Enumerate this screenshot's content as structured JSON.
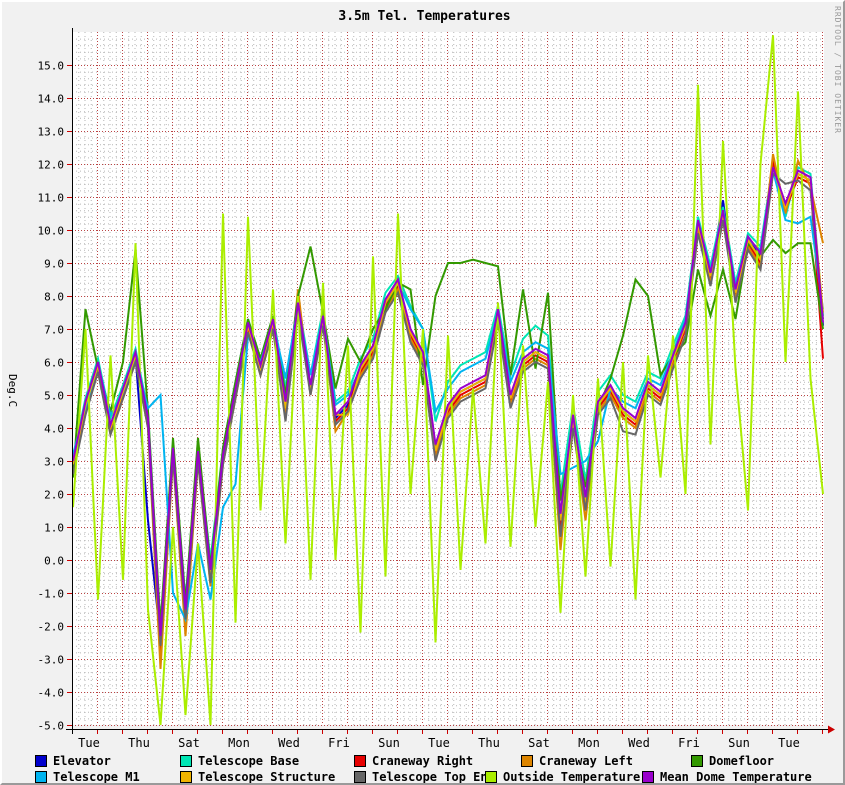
{
  "header": {
    "title": "3.5m Tel. Temperatures"
  },
  "watermark": "RRDTOOL / TOBI OETIKER",
  "y_axis": {
    "label": "Deg.C",
    "min": -5.0,
    "max": 16.0,
    "major_step": 1.0,
    "minor_step": 0.2,
    "tick_format_example": "15.0"
  },
  "x_axis": {
    "labels": [
      "Tue",
      "Thu",
      "Sat",
      "Mon",
      "Wed",
      "Fri",
      "Sun",
      "Tue",
      "Thu",
      "Sat",
      "Mon",
      "Wed",
      "Fri",
      "Sun",
      "Tue"
    ],
    "label_every_days": 2,
    "major_grid_days": 1,
    "minor_grid_days": 0.25,
    "span_days": 30
  },
  "chart_data": {
    "type": "line",
    "title": "3.5m Tel. Temperatures",
    "ylabel": "Deg.C",
    "ylim": [
      -5.0,
      16.0
    ],
    "grid": "on",
    "legend_position": "bottom",
    "x_start_day": 0,
    "step_days": 0.5,
    "x_tick_labels": [
      "Tue",
      "Thu",
      "Sat",
      "Mon",
      "Wed",
      "Fri",
      "Sun",
      "Tue",
      "Thu",
      "Sat",
      "Mon",
      "Wed",
      "Fri",
      "Sun",
      "Tue"
    ],
    "series": [
      {
        "name": "Elevator",
        "color": "#0000cc",
        "values": [
          2.9,
          4.7,
          6.0,
          4.0,
          5.1,
          6.2,
          1.2,
          -2.4,
          3.3,
          -1.6,
          3.2,
          -0.4,
          3.1,
          5.1,
          7.1,
          5.8,
          7.2,
          4.7,
          7.6,
          5.2,
          7.2,
          4.3,
          4.7,
          5.8,
          6.4,
          7.8,
          8.4,
          6.9,
          6.2,
          3.4,
          4.6,
          5.1,
          5.3,
          5.5,
          7.5,
          4.9,
          6.0,
          6.3,
          6.1,
          1.3,
          4.3,
          1.8,
          4.7,
          5.2,
          4.5,
          4.2,
          5.3,
          5.0,
          6.1,
          7.1,
          10.2,
          8.6,
          10.9,
          8.1,
          9.7,
          9.2,
          11.8,
          10.7,
          11.7,
          11.5,
          7.1
        ]
      },
      {
        "name": "Telescope Base",
        "color": "#00e6b4",
        "values": [
          3.1,
          4.9,
          6.1,
          4.3,
          5.3,
          6.4,
          4.5,
          -2.0,
          3.5,
          -1.2,
          3.4,
          0.0,
          3.4,
          5.4,
          7.3,
          6.1,
          7.4,
          5.2,
          7.9,
          5.6,
          7.6,
          4.8,
          5.1,
          6.1,
          6.7,
          8.1,
          8.6,
          7.7,
          7.0,
          4.2,
          5.4,
          5.9,
          6.1,
          6.3,
          7.7,
          5.6,
          6.7,
          7.1,
          6.8,
          2.0,
          4.7,
          2.4,
          5.1,
          5.6,
          5.0,
          4.8,
          5.7,
          5.5,
          6.5,
          7.4,
          10.4,
          8.9,
          10.7,
          8.4,
          9.9,
          9.5,
          12.0,
          10.4,
          11.9,
          11.7,
          7.4
        ]
      },
      {
        "name": "Craneway Right",
        "color": "#e60000",
        "values": [
          2.8,
          4.6,
          5.9,
          3.9,
          5.0,
          6.1,
          4.1,
          -2.9,
          3.2,
          -1.9,
          3.1,
          -0.6,
          3.0,
          5.0,
          7.0,
          5.7,
          7.1,
          4.5,
          7.7,
          5.1,
          7.3,
          4.2,
          4.6,
          5.7,
          6.3,
          7.7,
          8.3,
          6.8,
          6.1,
          3.2,
          4.5,
          5.0,
          5.2,
          5.4,
          7.4,
          4.8,
          5.9,
          6.2,
          6.0,
          0.9,
          4.2,
          1.6,
          4.6,
          5.1,
          4.4,
          4.1,
          5.2,
          4.9,
          6.0,
          7.0,
          10.1,
          8.5,
          10.5,
          8.0,
          9.6,
          9.0,
          12.1,
          10.6,
          11.6,
          11.4,
          6.1
        ]
      },
      {
        "name": "Craneway Left",
        "color": "#dd8500",
        "values": [
          2.7,
          4.5,
          5.8,
          3.8,
          4.9,
          6.0,
          4.0,
          -3.3,
          3.1,
          -2.3,
          3.0,
          -0.8,
          2.9,
          4.9,
          6.9,
          5.6,
          7.0,
          4.4,
          8.2,
          5.0,
          7.2,
          3.9,
          4.5,
          5.6,
          6.2,
          7.6,
          8.2,
          6.7,
          6.0,
          3.1,
          4.4,
          4.9,
          5.1,
          5.3,
          7.3,
          4.7,
          5.8,
          6.1,
          5.9,
          0.3,
          4.1,
          1.2,
          4.5,
          5.0,
          4.3,
          4.0,
          5.1,
          4.8,
          5.9,
          6.8,
          10.0,
          8.4,
          10.4,
          7.9,
          9.5,
          8.9,
          12.3,
          10.5,
          12.1,
          11.3,
          9.6
        ]
      },
      {
        "name": "Domefloor",
        "color": "#339900",
        "values": [
          2.5,
          7.6,
          5.8,
          4.5,
          6.0,
          9.4,
          4.5,
          -2.0,
          3.7,
          -1.3,
          3.7,
          -0.2,
          3.4,
          5.4,
          7.3,
          6.1,
          7.4,
          5.0,
          8.0,
          9.5,
          7.5,
          5.2,
          6.7,
          6.0,
          7.0,
          7.6,
          8.4,
          8.2,
          5.3,
          8.0,
          9.0,
          9.0,
          9.1,
          9.0,
          8.9,
          5.6,
          8.2,
          5.8,
          8.1,
          1.8,
          4.0,
          2.2,
          4.6,
          5.5,
          6.8,
          8.5,
          8.0,
          5.6,
          6.2,
          6.6,
          8.8,
          7.4,
          8.8,
          7.3,
          9.6,
          9.2,
          9.7,
          9.3,
          9.6,
          9.6,
          7.0
        ]
      },
      {
        "name": "Telescope M1",
        "color": "#00b4f0",
        "values": [
          3.2,
          4.6,
          5.9,
          4.4,
          5.0,
          6.1,
          4.6,
          5.0,
          -1.0,
          -1.8,
          0.5,
          -1.2,
          1.6,
          2.3,
          6.8,
          6.0,
          7.2,
          5.5,
          7.7,
          5.6,
          7.4,
          4.7,
          5.0,
          5.8,
          6.4,
          7.8,
          8.4,
          7.6,
          7.0,
          4.5,
          5.2,
          5.7,
          5.9,
          6.1,
          7.5,
          5.4,
          6.3,
          6.6,
          6.4,
          2.6,
          2.8,
          3.0,
          3.6,
          5.2,
          4.8,
          4.6,
          5.5,
          5.3,
          6.3,
          7.3,
          10.2,
          8.8,
          10.5,
          8.3,
          9.7,
          9.4,
          11.8,
          10.3,
          10.2,
          10.4,
          7.6
        ]
      },
      {
        "name": "Telescope Structure",
        "color": "#f0b400",
        "values": [
          2.9,
          4.7,
          5.9,
          4.0,
          5.1,
          6.2,
          4.2,
          -2.5,
          3.3,
          -1.7,
          3.2,
          -0.5,
          3.1,
          5.1,
          7.1,
          5.8,
          7.2,
          4.6,
          7.7,
          5.2,
          7.3,
          4.4,
          4.4,
          5.8,
          6.4,
          7.8,
          8.4,
          6.9,
          6.2,
          3.3,
          4.6,
          5.1,
          5.3,
          5.5,
          7.5,
          4.9,
          6.0,
          6.3,
          6.1,
          1.2,
          4.3,
          1.7,
          4.7,
          5.2,
          4.5,
          4.2,
          5.3,
          5.0,
          6.1,
          7.1,
          10.2,
          8.6,
          10.5,
          8.1,
          9.7,
          9.1,
          11.9,
          10.7,
          11.7,
          11.5,
          7.5
        ]
      },
      {
        "name": "Telescope Top End",
        "color": "#666666",
        "values": [
          2.6,
          4.4,
          5.7,
          3.8,
          4.9,
          6.0,
          4.0,
          -2.6,
          3.1,
          -1.8,
          3.0,
          -0.7,
          2.9,
          4.9,
          6.9,
          5.6,
          7.0,
          4.2,
          7.5,
          5.0,
          7.1,
          4.1,
          4.5,
          5.5,
          6.1,
          7.5,
          8.1,
          6.6,
          5.9,
          3.0,
          4.3,
          4.8,
          5.0,
          5.2,
          7.2,
          4.6,
          5.7,
          6.0,
          5.8,
          0.7,
          4.0,
          1.5,
          4.4,
          4.9,
          3.9,
          3.8,
          5.0,
          4.7,
          5.8,
          6.8,
          9.9,
          8.3,
          10.3,
          7.8,
          9.4,
          8.8,
          11.7,
          11.4,
          11.5,
          11.2,
          7.3
        ]
      },
      {
        "name": "Outside Temperature",
        "color": "#aaee00",
        "values": [
          1.6,
          7.0,
          -1.2,
          6.2,
          -0.6,
          9.6,
          -1.5,
          -5.0,
          1.0,
          -4.7,
          0.5,
          -5.0,
          10.5,
          -1.9,
          10.4,
          1.5,
          8.2,
          0.5,
          8.0,
          -0.6,
          8.4,
          0.0,
          6.5,
          -2.2,
          9.2,
          -0.5,
          10.5,
          2.0,
          7.0,
          -2.5,
          6.8,
          -0.3,
          5.2,
          0.5,
          7.8,
          0.4,
          6.5,
          1.0,
          5.4,
          -1.6,
          5.0,
          -0.5,
          5.5,
          -0.2,
          6.0,
          -1.2,
          6.2,
          2.5,
          6.8,
          2.0,
          14.4,
          3.5,
          12.7,
          5.8,
          1.5,
          12.0,
          15.9,
          6.0,
          14.2,
          5.5,
          2.0
        ]
      },
      {
        "name": "Mean Dome Temperature",
        "color": "#9900cc",
        "values": [
          3.0,
          4.8,
          6.0,
          4.1,
          5.2,
          6.3,
          4.3,
          -2.3,
          3.4,
          -1.5,
          3.3,
          -0.3,
          3.2,
          5.2,
          7.2,
          5.9,
          7.3,
          4.8,
          7.8,
          5.3,
          7.4,
          4.4,
          4.8,
          5.9,
          6.5,
          7.9,
          8.5,
          7.0,
          6.3,
          3.5,
          4.7,
          5.2,
          5.4,
          5.6,
          7.6,
          5.0,
          6.1,
          6.4,
          6.2,
          1.4,
          4.4,
          1.9,
          4.8,
          5.3,
          4.6,
          4.3,
          5.4,
          5.1,
          6.2,
          7.2,
          10.3,
          8.7,
          10.6,
          8.2,
          9.8,
          9.3,
          11.9,
          10.8,
          11.8,
          11.6,
          7.2
        ]
      }
    ]
  }
}
